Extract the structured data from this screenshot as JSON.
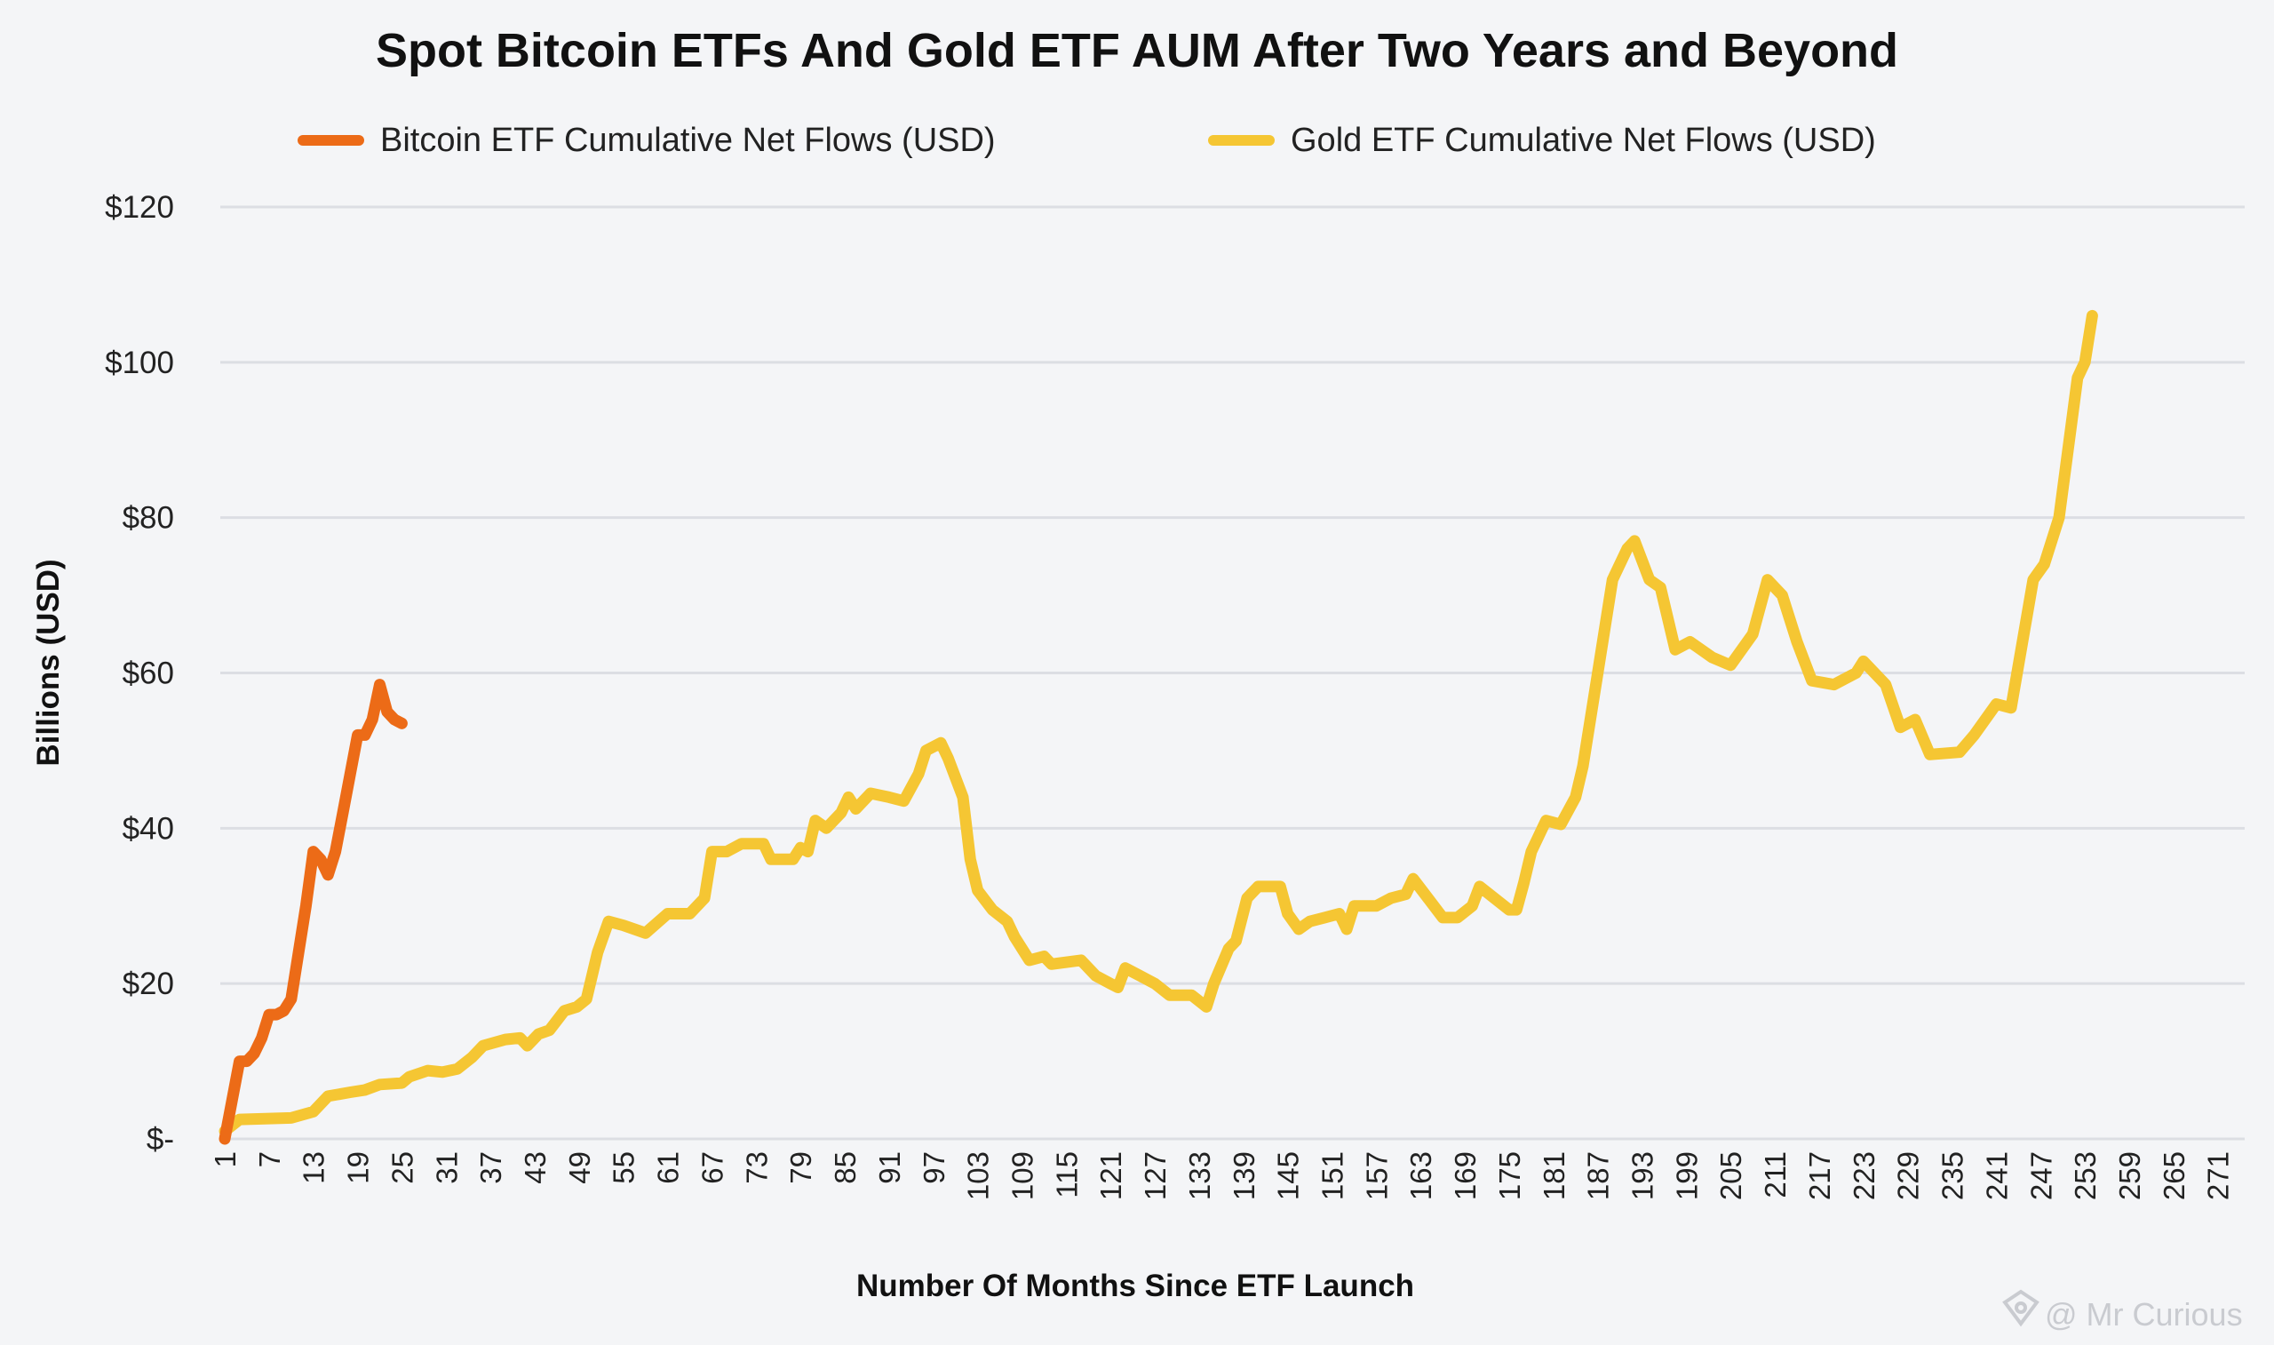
{
  "chart_data": {
    "type": "line",
    "title": "Spot Bitcoin ETFs And Gold ETF AUM After Two Years and Beyond",
    "xlabel": "Number Of Months Since ETF Launch",
    "ylabel": "Billions (USD)",
    "ylim": [
      0,
      120
    ],
    "xlim": [
      1,
      276
    ],
    "y_ticks": [
      0,
      20,
      40,
      60,
      80,
      100,
      120
    ],
    "y_tick_labels": [
      "$-",
      "$20",
      "$40",
      "$60",
      "$80",
      "$100",
      "$120"
    ],
    "x_tick_start": 1,
    "x_tick_end": 271,
    "x_tick_step": 6,
    "grid": "horizontal",
    "legend_position": "top",
    "series": [
      {
        "name": "Bitcoin ETF Cumulative Net Flows (USD)",
        "color": "#ec6b17",
        "points": [
          [
            1,
            0
          ],
          [
            2,
            5
          ],
          [
            3,
            10
          ],
          [
            4,
            10
          ],
          [
            5,
            11
          ],
          [
            6,
            13
          ],
          [
            7,
            16
          ],
          [
            8,
            16
          ],
          [
            9,
            16.5
          ],
          [
            10,
            18
          ],
          [
            11,
            24
          ],
          [
            12,
            30
          ],
          [
            13,
            37
          ],
          [
            14,
            36
          ],
          [
            15,
            34
          ],
          [
            16,
            37
          ],
          [
            17,
            42
          ],
          [
            18,
            47
          ],
          [
            19,
            52
          ],
          [
            20,
            52
          ],
          [
            21,
            54
          ],
          [
            22,
            58.5
          ],
          [
            23,
            55
          ],
          [
            24,
            54
          ],
          [
            25,
            53.5
          ]
        ]
      },
      {
        "name": "Gold ETF Cumulative Net Flows (USD)",
        "color": "#f5c633",
        "points": [
          [
            1,
            1
          ],
          [
            3,
            2.5
          ],
          [
            10,
            2.7
          ],
          [
            13,
            3.5
          ],
          [
            15,
            5.5
          ],
          [
            18,
            6
          ],
          [
            20,
            6.3
          ],
          [
            22,
            7
          ],
          [
            25,
            7.2
          ],
          [
            26,
            8
          ],
          [
            28.5,
            8.8
          ],
          [
            30.5,
            8.6
          ],
          [
            32.5,
            9
          ],
          [
            34.5,
            10.5
          ],
          [
            36,
            12
          ],
          [
            39,
            12.8
          ],
          [
            41,
            13
          ],
          [
            42,
            12
          ],
          [
            43.5,
            13.5
          ],
          [
            45,
            14
          ],
          [
            47,
            16.5
          ],
          [
            48.7,
            17
          ],
          [
            50,
            18
          ],
          [
            51.5,
            24
          ],
          [
            53,
            28
          ],
          [
            55,
            27.5
          ],
          [
            58,
            26.5
          ],
          [
            61,
            29
          ],
          [
            64,
            29
          ],
          [
            66,
            31
          ],
          [
            67,
            37
          ],
          [
            69,
            37
          ],
          [
            71,
            38
          ],
          [
            74,
            38
          ],
          [
            75,
            36
          ],
          [
            78,
            36
          ],
          [
            79,
            37.5
          ],
          [
            80,
            37
          ],
          [
            81,
            41
          ],
          [
            82.5,
            40
          ],
          [
            84.5,
            42
          ],
          [
            85.5,
            44
          ],
          [
            86.5,
            42.5
          ],
          [
            88.5,
            44.5
          ],
          [
            91,
            44
          ],
          [
            93,
            43.5
          ],
          [
            95,
            47
          ],
          [
            96,
            50
          ],
          [
            98,
            51
          ],
          [
            99,
            49
          ],
          [
            101,
            44
          ],
          [
            102,
            36
          ],
          [
            103,
            32
          ],
          [
            105,
            29.5
          ],
          [
            107,
            28
          ],
          [
            108,
            26
          ],
          [
            110,
            23
          ],
          [
            112,
            23.5
          ],
          [
            113,
            22.5
          ],
          [
            117,
            23
          ],
          [
            119,
            21
          ],
          [
            121,
            20
          ],
          [
            122,
            19.5
          ],
          [
            123,
            22
          ],
          [
            125,
            21
          ],
          [
            127,
            20
          ],
          [
            129,
            18.5
          ],
          [
            132,
            18.5
          ],
          [
            134,
            17
          ],
          [
            135,
            20
          ],
          [
            137,
            24.5
          ],
          [
            138,
            25.5
          ],
          [
            139.5,
            31
          ],
          [
            141,
            32.5
          ],
          [
            144,
            32.5
          ],
          [
            145,
            29
          ],
          [
            146.5,
            27
          ],
          [
            148,
            28
          ],
          [
            150,
            28.5
          ],
          [
            152,
            29
          ],
          [
            153,
            27
          ],
          [
            154,
            30
          ],
          [
            157,
            30
          ],
          [
            159,
            31
          ],
          [
            161,
            31.5
          ],
          [
            162,
            33.5
          ],
          [
            164,
            31
          ],
          [
            166,
            28.5
          ],
          [
            168,
            28.5
          ],
          [
            170,
            30
          ],
          [
            171,
            32.5
          ],
          [
            173,
            31
          ],
          [
            175,
            29.5
          ],
          [
            176,
            29.5
          ],
          [
            177,
            33
          ],
          [
            178,
            37
          ],
          [
            180,
            41
          ],
          [
            182,
            40.5
          ],
          [
            184,
            44
          ],
          [
            185,
            48
          ],
          [
            187,
            60
          ],
          [
            189,
            72
          ],
          [
            191,
            76
          ],
          [
            192,
            77
          ],
          [
            194,
            72
          ],
          [
            195.5,
            71
          ],
          [
            197.5,
            63
          ],
          [
            199.5,
            64
          ],
          [
            202.5,
            62
          ],
          [
            205,
            61
          ],
          [
            208,
            65
          ],
          [
            210,
            72
          ],
          [
            212,
            70
          ],
          [
            214,
            64
          ],
          [
            216,
            59
          ],
          [
            219,
            58.5
          ],
          [
            222,
            60
          ],
          [
            223,
            61.5
          ],
          [
            226,
            58.5
          ],
          [
            228,
            53
          ],
          [
            230,
            54
          ],
          [
            232,
            49.5
          ],
          [
            236,
            49.8
          ],
          [
            238,
            52
          ],
          [
            241,
            56
          ],
          [
            243,
            55.5
          ],
          [
            246,
            72
          ],
          [
            247.5,
            74
          ],
          [
            249.5,
            80
          ],
          [
            252,
            98
          ],
          [
            253,
            100
          ],
          [
            254,
            106
          ]
        ]
      }
    ]
  },
  "watermark": "@ Mr Curious"
}
